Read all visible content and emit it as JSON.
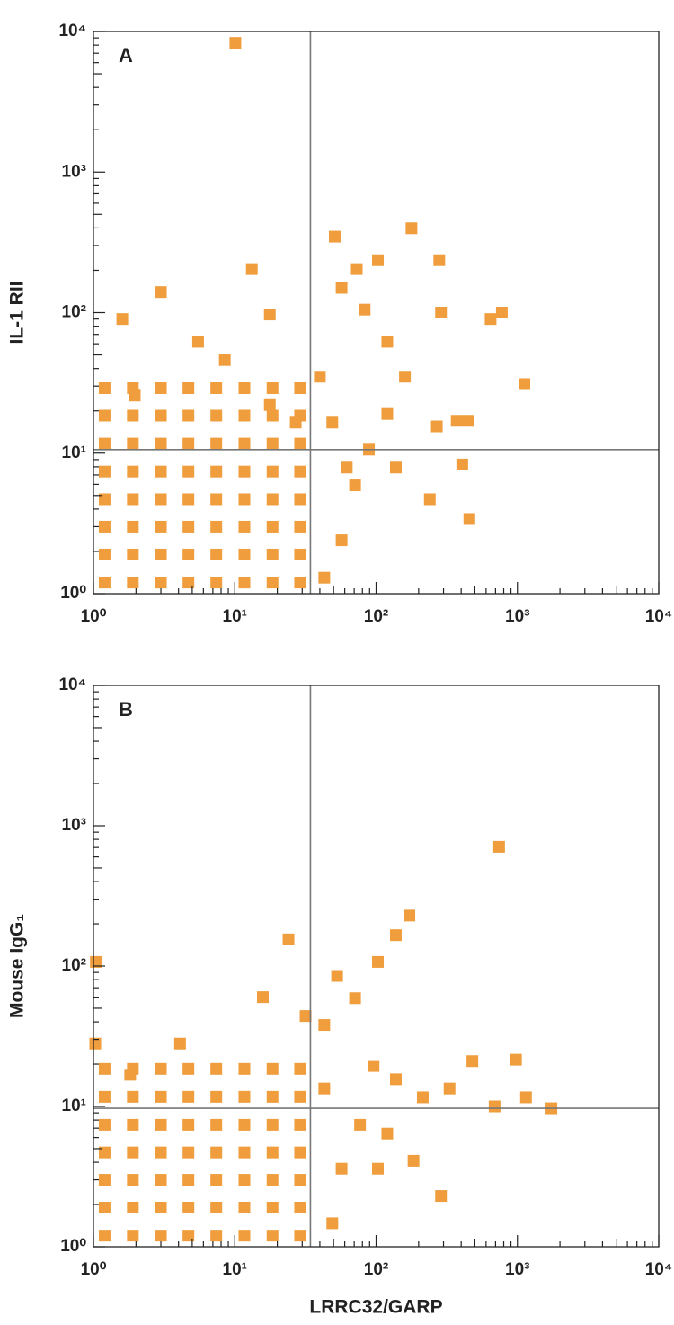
{
  "chart_data": [
    {
      "type": "scatter",
      "annotation": "A",
      "ylabel": "IL-1 RII",
      "log": true,
      "xlim": [
        1,
        10000
      ],
      "ylim": [
        1,
        10000
      ],
      "xticks": [
        {
          "value": 1,
          "label": "10⁰"
        },
        {
          "value": 10,
          "label": "10¹"
        },
        {
          "value": 100,
          "label": "10²"
        },
        {
          "value": 1000,
          "label": "10³"
        },
        {
          "value": 10000,
          "label": "10⁴"
        }
      ],
      "yticks": [
        {
          "value": 1,
          "label": "10⁰"
        },
        {
          "value": 10,
          "label": "10¹"
        },
        {
          "value": 100,
          "label": "10²"
        },
        {
          "value": 1000,
          "label": "10³"
        },
        {
          "value": 10000,
          "label": "10⁴"
        }
      ],
      "quadrant": {
        "x": 34.3,
        "y": 10.6
      },
      "series": [
        {
          "color": "#ef9d3d",
          "x": [
            1.2,
            1.9,
            3,
            4.7,
            7.4,
            11.7,
            18.5,
            29,
            1.2,
            1.9,
            3,
            4.7,
            7.4,
            11.7,
            18.5,
            29,
            1.2,
            1.9,
            3,
            4.7,
            7.4,
            11.7,
            18.5,
            29,
            1.2,
            1.9,
            3,
            4.7,
            7.4,
            11.7,
            18.5,
            29,
            1.2,
            1.9,
            3,
            4.7,
            7.4,
            11.7,
            18.5,
            29,
            1.2,
            1.9,
            3,
            4.7,
            7.4,
            11.7,
            18.5,
            29,
            1.2,
            1.9,
            3,
            4.7,
            7.4,
            11.7,
            18.5,
            29,
            1.2,
            1.9,
            3,
            4.7,
            7.4,
            11.7,
            18.5,
            29,
            10.1,
            178,
            51,
            280,
            646,
            776,
            1120,
            447,
            372,
            269,
            407,
            457,
            240,
            288,
            83,
            73,
            103,
            57,
            120,
            160,
            120,
            89,
            71,
            57,
            43,
            49,
            40,
            13.2,
            3.0,
            1.6,
            5.5,
            17.7,
            8.5,
            17.7,
            1.96,
            27,
            62,
            138
          ],
          "y": [
            1.2,
            1.2,
            1.2,
            1.2,
            1.2,
            1.2,
            1.2,
            1.2,
            1.9,
            1.9,
            1.9,
            1.9,
            1.9,
            1.9,
            1.9,
            1.9,
            3,
            3,
            3,
            3,
            3,
            3,
            3,
            3,
            4.7,
            4.7,
            4.7,
            4.7,
            4.7,
            4.7,
            4.7,
            4.7,
            7.4,
            7.4,
            7.4,
            7.4,
            7.4,
            7.4,
            7.4,
            7.4,
            11.7,
            11.7,
            11.7,
            11.7,
            11.7,
            11.7,
            11.7,
            11.7,
            18.5,
            18.5,
            18.5,
            18.5,
            18.5,
            18.5,
            18.5,
            18.5,
            29,
            29,
            29,
            29,
            29,
            29,
            29,
            29,
            8300,
            398,
            347,
            236,
            90,
            100,
            31,
            17,
            17,
            15.5,
            8.3,
            3.4,
            4.7,
            100,
            105,
            204,
            236,
            150,
            62,
            35,
            19,
            10.6,
            5.9,
            2.4,
            1.3,
            16.5,
            35,
            204,
            140,
            90,
            62,
            97,
            46,
            22,
            25.7,
            16.5,
            7.9,
            7.9
          ]
        }
      ]
    },
    {
      "type": "scatter",
      "annotation": "B",
      "ylabel": "Mouse IgG₁",
      "xlabel": "LRRC32/GARP",
      "log": true,
      "xlim": [
        1,
        10000
      ],
      "ylim": [
        1,
        10000
      ],
      "xticks": [
        {
          "value": 1,
          "label": "10⁰"
        },
        {
          "value": 10,
          "label": "10¹"
        },
        {
          "value": 100,
          "label": "10²"
        },
        {
          "value": 1000,
          "label": "10³"
        },
        {
          "value": 10000,
          "label": "10⁴"
        }
      ],
      "yticks": [
        {
          "value": 1,
          "label": "10⁰"
        },
        {
          "value": 10,
          "label": "10¹"
        },
        {
          "value": 100,
          "label": "10²"
        },
        {
          "value": 1000,
          "label": "10³"
        },
        {
          "value": 10000,
          "label": "10⁴"
        }
      ],
      "quadrant": {
        "x": 34.3,
        "y": 9.7
      },
      "series": [
        {
          "color": "#ef9d3d",
          "x": [
            1.2,
            1.9,
            3,
            4.7,
            7.4,
            11.7,
            18.5,
            29,
            1.2,
            1.9,
            3,
            4.7,
            7.4,
            11.7,
            18.5,
            29,
            1.2,
            1.9,
            3,
            4.7,
            7.4,
            11.7,
            18.5,
            29,
            1.2,
            1.9,
            3,
            4.7,
            7.4,
            11.7,
            18.5,
            29,
            1.2,
            1.9,
            3,
            4.7,
            7.4,
            11.7,
            18.5,
            29,
            1.2,
            1.9,
            3,
            4.7,
            7.4,
            11.7,
            18.5,
            29,
            1.2,
            1.9,
            3,
            4.7,
            7.4,
            11.7,
            18.5,
            29,
            742,
            172,
            138,
            103,
            24,
            15.8,
            53,
            71,
            43,
            31.7,
            1.04,
            977,
            1150,
            1740,
            690,
            480,
            331,
            214,
            138,
            120,
            288,
            184,
            103,
            77,
            57,
            49,
            4.1,
            1.03,
            1.82,
            96,
            43
          ],
          "y": [
            1.2,
            1.2,
            1.2,
            1.2,
            1.2,
            1.2,
            1.2,
            1.2,
            1.9,
            1.9,
            1.9,
            1.9,
            1.9,
            1.9,
            1.9,
            1.9,
            3,
            3,
            3,
            3,
            3,
            3,
            3,
            3,
            4.7,
            4.7,
            4.7,
            4.7,
            4.7,
            4.7,
            4.7,
            4.7,
            7.4,
            7.4,
            7.4,
            7.4,
            7.4,
            7.4,
            7.4,
            7.4,
            11.7,
            11.7,
            11.7,
            11.7,
            11.7,
            11.7,
            11.7,
            11.7,
            18.5,
            18.5,
            18.5,
            18.5,
            18.5,
            18.5,
            18.5,
            18.5,
            708,
            229,
            166,
            107,
            155,
            60,
            85,
            59,
            38,
            44,
            107,
            21.5,
            11.6,
            9.7,
            10,
            21,
            13.4,
            11.6,
            15.6,
            6.4,
            2.3,
            4.1,
            3.6,
            7.4,
            3.6,
            1.47,
            28,
            28,
            16.8,
            19.4,
            13.4
          ]
        }
      ]
    }
  ]
}
